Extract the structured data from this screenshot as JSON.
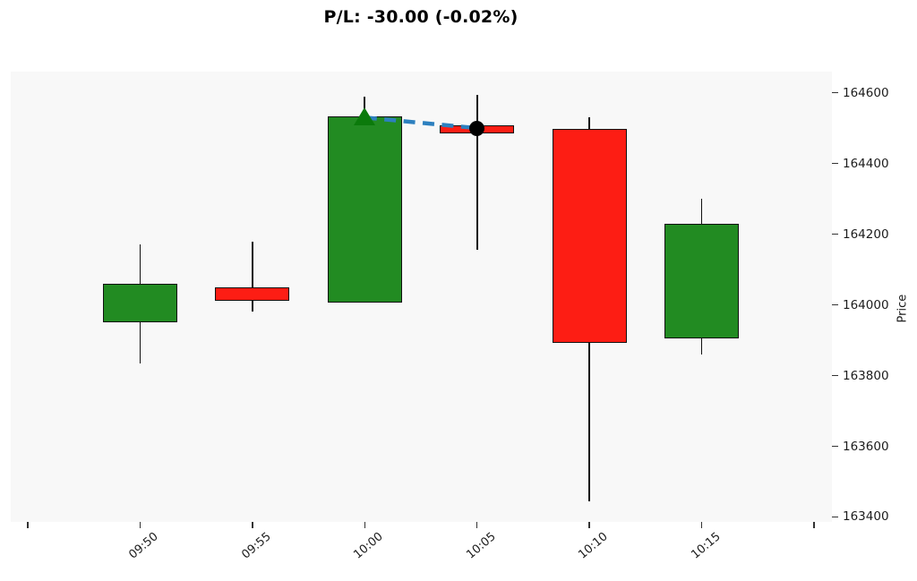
{
  "chart_data": {
    "type": "candlestick",
    "title": "P/L: -30.00 (-0.02%)",
    "ylabel": "Price",
    "legend": "none",
    "grid": false,
    "plot_bg": "#f8f8f8",
    "figure_bg": "#ffffff",
    "x_tick_labels": [
      "",
      "09:50",
      "09:55",
      "10:00",
      "10:05",
      "10:10",
      "10:15",
      ""
    ],
    "y_ticks": [
      164600,
      164400,
      164200,
      164000,
      163800,
      163600,
      163400
    ],
    "ylim": [
      163386,
      164660
    ],
    "candles": [
      {
        "time": "09:50",
        "open": 163955,
        "high": 164170,
        "low": 163835,
        "close": 164055,
        "direction": "up"
      },
      {
        "time": "09:55",
        "open": 164045,
        "high": 164180,
        "low": 163980,
        "close": 164015,
        "direction": "down"
      },
      {
        "time": "10:00",
        "open": 164010,
        "high": 164590,
        "low": 164010,
        "close": 164530,
        "direction": "up"
      },
      {
        "time": "10:05",
        "open": 164505,
        "high": 164595,
        "low": 164155,
        "close": 164495,
        "direction": "down"
      },
      {
        "time": "10:10",
        "open": 164495,
        "high": 164530,
        "low": 163445,
        "close": 163895,
        "direction": "down"
      },
      {
        "time": "10:15",
        "open": 163910,
        "high": 164300,
        "low": 163860,
        "close": 164225,
        "direction": "up"
      }
    ],
    "markers": {
      "entry": {
        "time": "10:00",
        "price": 164530,
        "shape": "triangle-up",
        "color": "#0b7a0b"
      },
      "current": {
        "time": "10:05",
        "price": 164500,
        "shape": "circle",
        "color": "#000000"
      },
      "trade_line": {
        "style": "dashed",
        "color": "#2d80bf",
        "from_time": "10:00",
        "from_price": 164530,
        "to_time": "10:05",
        "to_price": 164500
      }
    },
    "colors": {
      "up_candle": "#228B22",
      "down_candle": "#fd1d14",
      "candle_edge": "#111111",
      "wick": "#111111",
      "tick_text": "#1c1c1c"
    }
  }
}
